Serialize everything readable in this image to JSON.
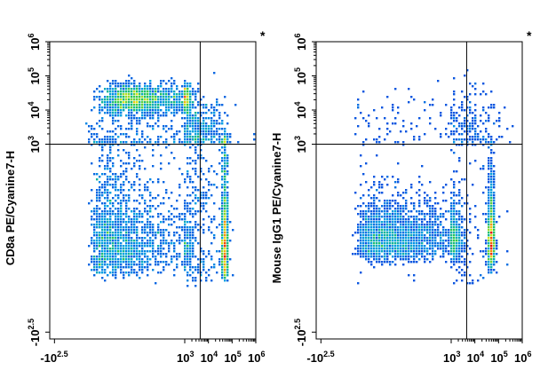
{
  "chart_data": [
    {
      "type": "scatter",
      "subtype": "flow-cytometry-density-plot",
      "ylabel": "CD8a PE/Cyanine7-H",
      "xlabel": "",
      "axis_scale": "biexponential",
      "xlim": [
        -316,
        1000000
      ],
      "ylim": [
        -316,
        1000000
      ],
      "x_ticks": [
        {
          "base": "-10",
          "exp": "2.5"
        },
        {
          "base": "10",
          "exp": "3"
        },
        {
          "base": "10",
          "exp": "4"
        },
        {
          "base": "10",
          "exp": "5"
        },
        {
          "base": "10",
          "exp": "6"
        }
      ],
      "y_ticks": [
        {
          "base": "-10",
          "exp": "2.5"
        },
        {
          "base": "10",
          "exp": "3"
        },
        {
          "base": "10",
          "exp": "4"
        },
        {
          "base": "10",
          "exp": "5"
        },
        {
          "base": "10",
          "exp": "6"
        }
      ],
      "gate": {
        "x": 4500,
        "y": 1000
      },
      "marker": "*",
      "populations": [
        {
          "x_log": 2.75,
          "y_log": 4.3,
          "sx": 0.22,
          "sy": 0.22,
          "n": 1600
        },
        {
          "x_log": 2.55,
          "y_log": 2.55,
          "sx": 0.3,
          "sy": 0.25,
          "n": 1600
        },
        {
          "x_log": 4.7,
          "y_log": 2.55,
          "sx": 0.06,
          "sy": 0.3,
          "n": 900
        },
        {
          "x_log": 3.4,
          "y_log": 3.1,
          "sx": 0.7,
          "sy": 0.6,
          "n": 900
        }
      ]
    },
    {
      "type": "scatter",
      "subtype": "flow-cytometry-density-plot",
      "ylabel": "Mouse IgG1 PE/Cyanine7-H",
      "xlabel": "",
      "axis_scale": "biexponential",
      "xlim": [
        -316,
        1000000
      ],
      "ylim": [
        -316,
        1000000
      ],
      "x_ticks": [
        {
          "base": "-10",
          "exp": "2.5"
        },
        {
          "base": "10",
          "exp": "3"
        },
        {
          "base": "10",
          "exp": "4"
        },
        {
          "base": "10",
          "exp": "5"
        },
        {
          "base": "10",
          "exp": "6"
        }
      ],
      "y_ticks": [
        {
          "base": "-10",
          "exp": "2.5"
        },
        {
          "base": "10",
          "exp": "3"
        },
        {
          "base": "10",
          "exp": "4"
        },
        {
          "base": "10",
          "exp": "5"
        },
        {
          "base": "10",
          "exp": "6"
        }
      ],
      "gate": {
        "x": 4500,
        "y": 1000
      },
      "marker": "*",
      "populations": [
        {
          "x_log": 2.7,
          "y_log": 2.55,
          "sx": 0.33,
          "sy": 0.13,
          "n": 2400
        },
        {
          "x_log": 4.7,
          "y_log": 2.55,
          "sx": 0.07,
          "sy": 0.18,
          "n": 1100
        },
        {
          "x_log": 3.5,
          "y_log": 3.2,
          "sx": 0.8,
          "sy": 0.7,
          "n": 450
        }
      ]
    }
  ]
}
